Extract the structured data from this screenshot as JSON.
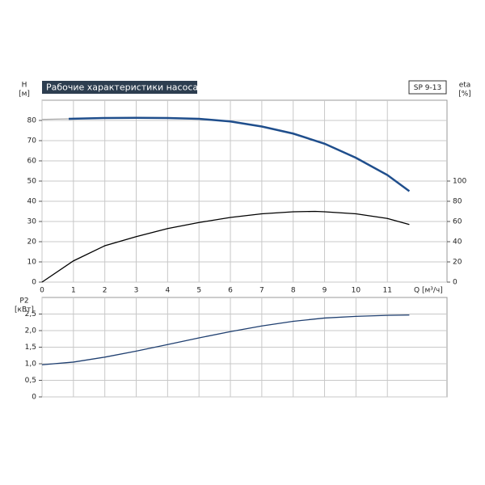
{
  "chart_data": [
    {
      "type": "line",
      "title": "Рабочие характеристики насоса",
      "model": "SP 9-13",
      "ylabel": "H",
      "yunit": "[м]",
      "y2label": "eta",
      "y2unit": "[%]",
      "xlabel": "Q [м³/ч]",
      "xlim": [
        0,
        12.9
      ],
      "xticks": [
        0,
        1,
        2,
        3,
        4,
        5,
        6,
        7,
        8,
        9,
        10,
        11
      ],
      "ylim": [
        0,
        90
      ],
      "yticks": [
        0,
        10,
        20,
        30,
        40,
        50,
        60,
        70,
        80
      ],
      "y2lim": [
        0,
        180
      ],
      "y2ticks": [
        0,
        20,
        40,
        60,
        80,
        100
      ],
      "grid": true,
      "series": [
        {
          "color": "#a9a9a9",
          "x": [
            0,
            0.85
          ],
          "values": [
            80.5,
            80.8
          ]
        },
        {
          "color": "#1f4e8c",
          "x": [
            0.85,
            2,
            3,
            4,
            5,
            6,
            7,
            8,
            9,
            10,
            11,
            11.7
          ],
          "values": [
            80.8,
            81.2,
            81.3,
            81.2,
            80.8,
            79.5,
            77,
            73.5,
            68.5,
            61.5,
            53,
            45
          ]
        },
        {
          "color": "#000000",
          "axis": "y2",
          "x": [
            0,
            1,
            2,
            3,
            4,
            5,
            6,
            7,
            8,
            8.7,
            9,
            10,
            11,
            11.7
          ],
          "values": [
            0,
            21,
            36,
            45,
            53,
            59,
            64,
            67.6,
            69.6,
            70,
            69.6,
            67.6,
            63,
            57
          ]
        }
      ]
    },
    {
      "type": "line",
      "ylabel": "P2",
      "yunit": "[кВт]",
      "xlim": [
        0,
        12.9
      ],
      "xticks": [
        0,
        1,
        2,
        3,
        4,
        5,
        6,
        7,
        8,
        9,
        10,
        11
      ],
      "ylim": [
        0,
        3
      ],
      "yticks": [
        0,
        {
          "value": 0.5,
          "label": "0,5"
        },
        {
          "value": 1,
          "label": "1,0"
        },
        {
          "value": 1.5,
          "label": "1,5"
        },
        {
          "value": 2,
          "label": "2,0"
        },
        {
          "value": 2.5,
          "label": "2,5"
        }
      ],
      "grid": true,
      "series": [
        {
          "color": "#1f3f70",
          "x": [
            0,
            1,
            2,
            3,
            4,
            5,
            6,
            7,
            8,
            9,
            10,
            11,
            11.7
          ],
          "values": [
            0.97,
            1.05,
            1.2,
            1.38,
            1.58,
            1.78,
            1.97,
            2.14,
            2.28,
            2.38,
            2.43,
            2.46,
            2.47
          ]
        }
      ]
    }
  ]
}
